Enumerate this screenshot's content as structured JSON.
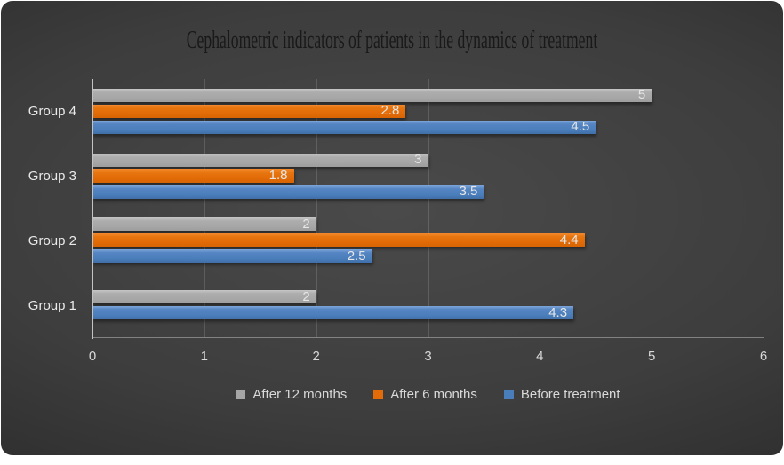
{
  "chart": {
    "title": "Cephalometric indicators of patients in the dynamics of treatment"
  },
  "colors": {
    "gray": "#a6a6a6",
    "orange": "#e36c09",
    "blue": "#4a7ebb",
    "background_center": "#4a4a4a",
    "background_edge": "#232323",
    "axis_line": "#c3c3c3",
    "tick_text": "#d9d9d9",
    "data_label_text": "#e6e6e6"
  },
  "chart_data": {
    "type": "bar",
    "orientation": "horizontal",
    "title": "Cephalometric indicators of patients in the dynamics of treatment",
    "categories": [
      "Group 1",
      "Group 2",
      "Group 3",
      "Group 4"
    ],
    "series": [
      {
        "name": "After 12 months",
        "color_key": "gray",
        "values": [
          2,
          2,
          3,
          5
        ],
        "labels": [
          "2",
          "2",
          "3",
          "5"
        ]
      },
      {
        "name": "After 6 months",
        "color_key": "orange",
        "values": [
          0,
          4.4,
          1.8,
          2.8
        ],
        "labels": [
          "",
          "4.4",
          "1.8",
          "2.8"
        ]
      },
      {
        "name": "Before treatment",
        "color_key": "blue",
        "values": [
          4.3,
          2.5,
          3.5,
          4.5
        ],
        "labels": [
          "4.3",
          "2.5",
          "3.5",
          "4.5"
        ]
      }
    ],
    "xlabel": "",
    "ylabel": "",
    "xlim": [
      0,
      6
    ],
    "x_ticks": [
      0,
      1,
      2,
      3,
      4,
      5,
      6
    ],
    "grid": true,
    "legend_position": "bottom",
    "data_labels": "inside-end",
    "category_order_on_screen_top_to_bottom": [
      "Group 4",
      "Group 3",
      "Group 2",
      "Group 1"
    ],
    "series_order_within_group_top_to_bottom": [
      "After 12 months",
      "After 6 months",
      "Before treatment"
    ]
  }
}
